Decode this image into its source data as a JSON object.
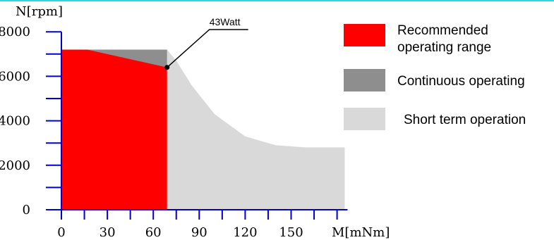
{
  "chart_data": {
    "type": "area",
    "xlabel": "M[mNm]",
    "ylabel": "N[rpm]",
    "xlim": [
      0,
      185
    ],
    "ylim": [
      0,
      8000
    ],
    "x_ticks": [
      0,
      30,
      60,
      90,
      120,
      150
    ],
    "x_tick_labels": [
      "0",
      "30",
      "60",
      "90",
      "120",
      "150"
    ],
    "y_ticks": [
      0,
      2000,
      4000,
      6000,
      8000
    ],
    "y_tick_labels": [
      "0",
      "2000",
      "4000",
      "6000",
      "8000"
    ],
    "x_minor_step": 15,
    "y_minor_step": 1000,
    "regions": [
      {
        "name": "Short term operation",
        "color": "#d9d9d9",
        "points": [
          [
            69,
            6400
          ],
          [
            69,
            0
          ],
          [
            185,
            0
          ],
          [
            185,
            2800
          ],
          [
            160,
            2800
          ],
          [
            140,
            2900
          ],
          [
            120,
            3300
          ],
          [
            100,
            4300
          ],
          [
            85,
            5600
          ],
          [
            75,
            6700
          ],
          [
            69,
            7200
          ]
        ]
      },
      {
        "name": "Continuous operating",
        "color": "#8e8e8e",
        "points": [
          [
            0,
            7200
          ],
          [
            69,
            7200
          ],
          [
            69,
            6400
          ]
        ]
      },
      {
        "name": "Recommended operating range",
        "color": "#ff0000",
        "points": [
          [
            0,
            7200
          ],
          [
            17,
            7200
          ],
          [
            69,
            6400
          ],
          [
            69,
            0
          ],
          [
            0,
            0
          ]
        ]
      }
    ],
    "annotation": {
      "text": "43Watt",
      "point": [
        69,
        6400
      ]
    },
    "legend": {
      "placement": "right",
      "entries": [
        {
          "lines": [
            "Recommended",
            "operating range"
          ],
          "color": "#ff0000"
        },
        {
          "lines": [
            "Continuous operating"
          ],
          "color": "#8e8e8e"
        },
        {
          "lines": [
            "Short term operation"
          ],
          "color": "#d9d9d9"
        }
      ]
    },
    "axis_color": "#0000cc"
  }
}
